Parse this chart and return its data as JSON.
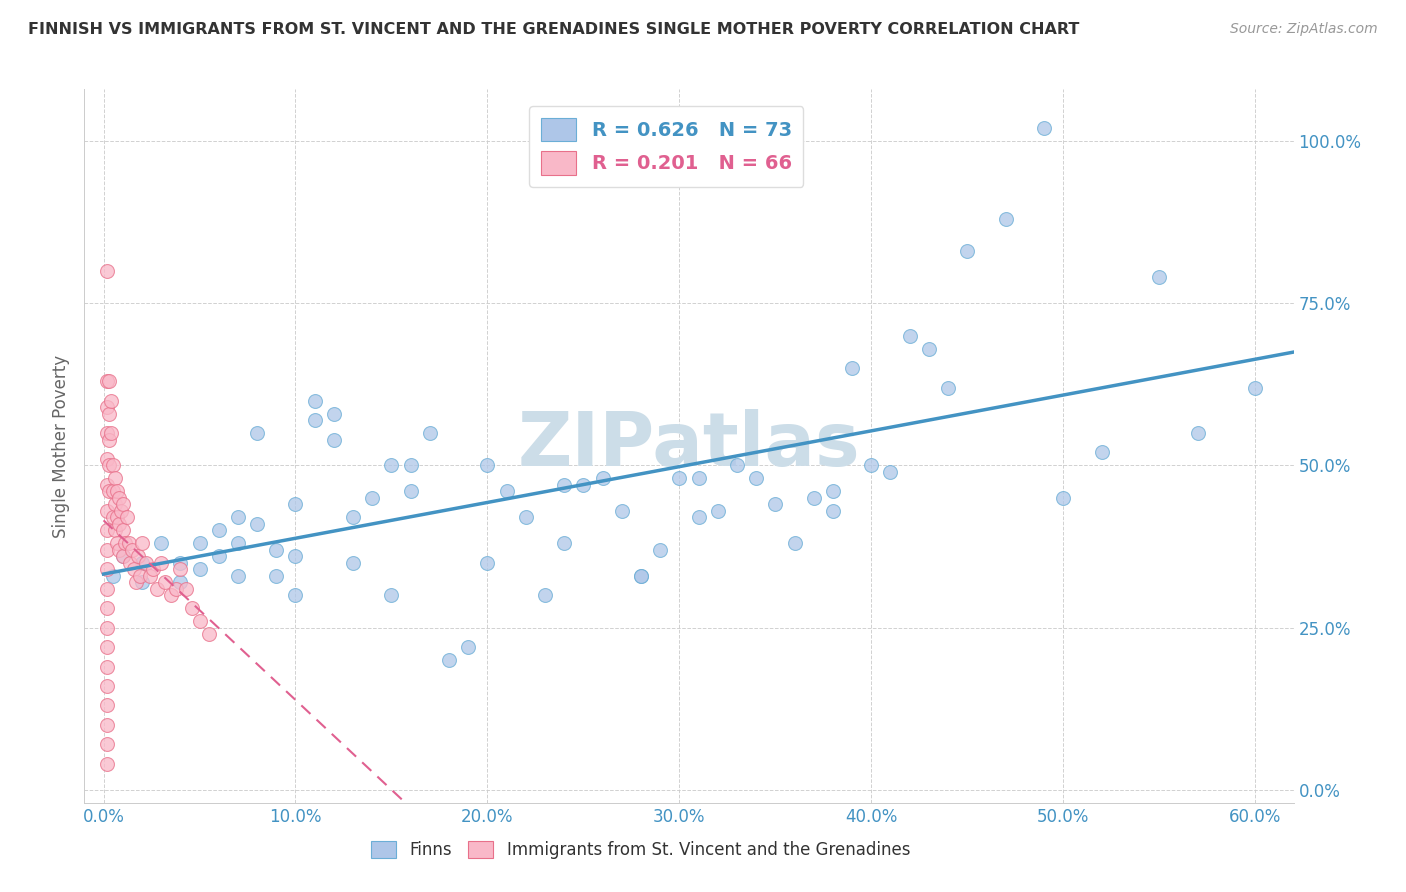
{
  "title": "FINNISH VS IMMIGRANTS FROM ST. VINCENT AND THE GRENADINES SINGLE MOTHER POVERTY CORRELATION CHART",
  "source": "Source: ZipAtlas.com",
  "xlabel_vals": [
    0.0,
    0.1,
    0.2,
    0.3,
    0.4,
    0.5,
    0.6
  ],
  "ylabel_vals": [
    0.0,
    0.25,
    0.5,
    0.75,
    1.0
  ],
  "xlim": [
    -0.01,
    0.62
  ],
  "ylim": [
    -0.02,
    1.08
  ],
  "legend1_R": 0.626,
  "legend1_N": 73,
  "legend2_R": 0.201,
  "legend2_N": 66,
  "blue_scatter_x": [
    0.005,
    0.01,
    0.02,
    0.02,
    0.03,
    0.04,
    0.04,
    0.05,
    0.05,
    0.06,
    0.06,
    0.07,
    0.07,
    0.07,
    0.08,
    0.08,
    0.09,
    0.09,
    0.1,
    0.1,
    0.1,
    0.11,
    0.11,
    0.12,
    0.12,
    0.13,
    0.13,
    0.14,
    0.15,
    0.15,
    0.16,
    0.16,
    0.17,
    0.18,
    0.19,
    0.2,
    0.2,
    0.21,
    0.22,
    0.23,
    0.24,
    0.24,
    0.25,
    0.26,
    0.27,
    0.28,
    0.28,
    0.29,
    0.3,
    0.31,
    0.31,
    0.32,
    0.33,
    0.34,
    0.35,
    0.36,
    0.37,
    0.38,
    0.38,
    0.39,
    0.4,
    0.41,
    0.42,
    0.43,
    0.44,
    0.45,
    0.47,
    0.49,
    0.5,
    0.52,
    0.55,
    0.57,
    0.6
  ],
  "blue_scatter_y": [
    0.33,
    0.36,
    0.35,
    0.32,
    0.38,
    0.35,
    0.32,
    0.38,
    0.34,
    0.4,
    0.36,
    0.42,
    0.38,
    0.33,
    0.55,
    0.41,
    0.37,
    0.33,
    0.44,
    0.36,
    0.3,
    0.6,
    0.57,
    0.58,
    0.54,
    0.35,
    0.42,
    0.45,
    0.5,
    0.3,
    0.5,
    0.46,
    0.55,
    0.2,
    0.22,
    0.5,
    0.35,
    0.46,
    0.42,
    0.3,
    0.47,
    0.38,
    0.47,
    0.48,
    0.43,
    0.33,
    0.33,
    0.37,
    0.48,
    0.48,
    0.42,
    0.43,
    0.5,
    0.48,
    0.44,
    0.38,
    0.45,
    0.46,
    0.43,
    0.65,
    0.5,
    0.49,
    0.7,
    0.68,
    0.62,
    0.83,
    0.88,
    1.02,
    0.45,
    0.52,
    0.79,
    0.55,
    0.62
  ],
  "pink_scatter_x": [
    0.002,
    0.002,
    0.002,
    0.002,
    0.002,
    0.002,
    0.002,
    0.002,
    0.002,
    0.002,
    0.002,
    0.002,
    0.002,
    0.002,
    0.002,
    0.002,
    0.002,
    0.002,
    0.002,
    0.002,
    0.003,
    0.003,
    0.003,
    0.003,
    0.003,
    0.004,
    0.004,
    0.005,
    0.005,
    0.005,
    0.006,
    0.006,
    0.006,
    0.007,
    0.007,
    0.007,
    0.008,
    0.008,
    0.008,
    0.009,
    0.01,
    0.01,
    0.01,
    0.011,
    0.012,
    0.013,
    0.014,
    0.015,
    0.016,
    0.017,
    0.018,
    0.019,
    0.02,
    0.022,
    0.024,
    0.026,
    0.028,
    0.03,
    0.032,
    0.035,
    0.038,
    0.04,
    0.043,
    0.046,
    0.05,
    0.055
  ],
  "pink_scatter_y": [
    0.8,
    0.63,
    0.59,
    0.55,
    0.51,
    0.47,
    0.43,
    0.4,
    0.37,
    0.34,
    0.31,
    0.28,
    0.25,
    0.22,
    0.19,
    0.16,
    0.13,
    0.1,
    0.07,
    0.04,
    0.63,
    0.58,
    0.54,
    0.5,
    0.46,
    0.6,
    0.55,
    0.5,
    0.46,
    0.42,
    0.48,
    0.44,
    0.4,
    0.46,
    0.42,
    0.38,
    0.45,
    0.41,
    0.37,
    0.43,
    0.44,
    0.4,
    0.36,
    0.38,
    0.42,
    0.38,
    0.35,
    0.37,
    0.34,
    0.32,
    0.36,
    0.33,
    0.38,
    0.35,
    0.33,
    0.34,
    0.31,
    0.35,
    0.32,
    0.3,
    0.31,
    0.34,
    0.31,
    0.28,
    0.26,
    0.24
  ],
  "blue_dot_color": "#aec6e8",
  "blue_edge_color": "#6baed6",
  "pink_dot_color": "#f9b8c8",
  "pink_edge_color": "#e8708a",
  "blue_line_color": "#4393c3",
  "pink_line_color": "#e06090",
  "watermark": "ZIPatlas",
  "watermark_color": "#ccdde8",
  "scatter_size": 100,
  "scatter_alpha": 0.75,
  "grid_color": "#cccccc",
  "background_color": "#ffffff",
  "tick_color": "#4393c3",
  "ylabel_text": "Single Mother Poverty",
  "legend_blue_text_color": "#4393c3",
  "legend_pink_text_color": "#e06090"
}
